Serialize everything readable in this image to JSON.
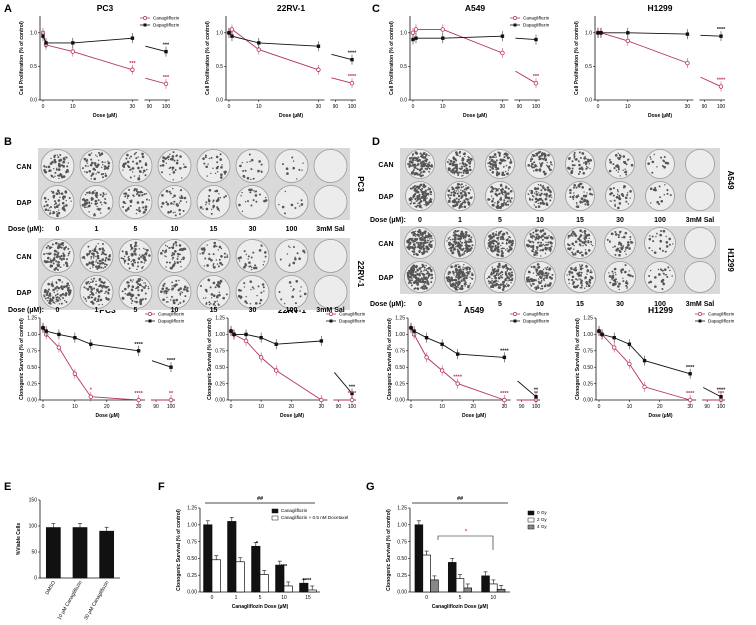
{
  "panel_letters": [
    "A",
    "B",
    "C",
    "D",
    "E",
    "F",
    "G"
  ],
  "legend": {
    "can": "Canagliflozin",
    "dap": "Dapagliflozin",
    "can_doc": "Canagliflozin + 0.5 nM Docetaxel",
    "gy0": "0 Gy",
    "gy2": "2 Gy",
    "gy4": "4 Gy"
  },
  "chart_data": [
    {
      "type": "line",
      "title": "PC3",
      "xlabel": "Dose (µM)",
      "ylabel": "Cell Proliferation (% of control)",
      "x": [
        0,
        1,
        10,
        30,
        100
      ],
      "ylim": [
        0,
        1.25
      ],
      "yticks": [
        "0.0",
        "0.5",
        "1.0"
      ],
      "xticks": [
        "0",
        "10",
        "30",
        "90",
        "100"
      ],
      "series": [
        {
          "name": "Canagliflozin",
          "values": [
            1.0,
            0.82,
            0.72,
            0.45,
            0.24
          ]
        },
        {
          "name": "Dapagliflozin",
          "values": [
            0.95,
            0.85,
            0.85,
            0.92,
            0.72
          ]
        }
      ],
      "annotations": [
        "***",
        "***",
        "***"
      ]
    },
    {
      "type": "line",
      "title": "22RV-1",
      "xlabel": "Dose (µM)",
      "ylabel": "Cell Proliferation (% of control)",
      "x": [
        0,
        1,
        10,
        30,
        100
      ],
      "ylim": [
        0,
        1.25
      ],
      "yticks": [
        "0.0",
        "0.5",
        "1.0"
      ],
      "xticks": [
        "0",
        "10",
        "30",
        "90",
        "100"
      ],
      "series": [
        {
          "name": "Canagliflozin",
          "values": [
            1.0,
            1.05,
            0.75,
            0.45,
            0.25
          ]
        },
        {
          "name": "Dapagliflozin",
          "values": [
            1.0,
            0.95,
            0.85,
            0.8,
            0.6
          ]
        }
      ],
      "annotations": [
        "****",
        "****"
      ]
    },
    {
      "type": "line",
      "title": "A549",
      "xlabel": "Dose (µM)",
      "ylabel": "Cell Proliferation (% of control)",
      "x": [
        0,
        1,
        10,
        30,
        100
      ],
      "ylim": [
        0,
        1.25
      ],
      "yticks": [
        "0.0",
        "0.5",
        "1.0"
      ],
      "xticks": [
        "0",
        "10",
        "30",
        "90",
        "100"
      ],
      "series": [
        {
          "name": "Canagliflozin",
          "values": [
            1.0,
            1.05,
            1.05,
            0.7,
            0.25
          ]
        },
        {
          "name": "Dapagliflozin",
          "values": [
            0.9,
            0.92,
            0.92,
            0.95,
            0.9
          ]
        }
      ],
      "annotations": [
        "***"
      ]
    },
    {
      "type": "line",
      "title": "H1299",
      "xlabel": "Dose (µM)",
      "ylabel": "Cell Proliferation (% of control)",
      "x": [
        0,
        1,
        10,
        30,
        100
      ],
      "ylim": [
        0,
        1.25
      ],
      "yticks": [
        "0.0",
        "0.5",
        "1.0"
      ],
      "xticks": [
        "0",
        "10",
        "30",
        "90",
        "100"
      ],
      "series": [
        {
          "name": "Canagliflozin",
          "values": [
            1.0,
            1.0,
            0.88,
            0.55,
            0.2
          ]
        },
        {
          "name": "Dapagliflozin",
          "values": [
            1.0,
            1.0,
            1.0,
            0.98,
            0.95
          ]
        }
      ],
      "annotations": [
        "****",
        "****"
      ]
    },
    {
      "type": "line",
      "title": "PC3",
      "xlabel": "Dose (µM)",
      "ylabel": "Clonogenic Survival (% of control)",
      "x": [
        0,
        1,
        5,
        10,
        15,
        30,
        100
      ],
      "ylim": [
        0,
        1.25
      ],
      "yticks": [
        "0.00",
        "0.25",
        "0.50",
        "0.75",
        "1.00",
        "1.25"
      ],
      "xticks": [
        "0",
        "10",
        "20",
        "30",
        "90",
        "100"
      ],
      "series": [
        {
          "name": "Canagliflozin",
          "values": [
            1.1,
            1.0,
            0.8,
            0.4,
            0.05,
            0.0,
            0.0
          ]
        },
        {
          "name": "Dapagliflozin",
          "values": [
            1.1,
            1.05,
            1.0,
            0.95,
            0.85,
            0.75,
            0.5
          ]
        }
      ],
      "annotations": [
        "**",
        "****",
        "****",
        "****",
        "*"
      ]
    },
    {
      "type": "line",
      "title": "22RV-1",
      "xlabel": "Dose (µM)",
      "ylabel": "Clonogenic Survival (% of control)",
      "x": [
        0,
        1,
        5,
        10,
        15,
        30,
        100
      ],
      "ylim": [
        0,
        1.25
      ],
      "yticks": [
        "0.00",
        "0.25",
        "0.50",
        "0.75",
        "1.00",
        "1.25"
      ],
      "xticks": [
        "0",
        "10",
        "20",
        "30",
        "90",
        "100"
      ],
      "series": [
        {
          "name": "Canagliflozin",
          "values": [
            1.05,
            1.0,
            0.9,
            0.65,
            0.45,
            0.0,
            0.0
          ]
        },
        {
          "name": "Dapagliflozin",
          "values": [
            1.05,
            1.0,
            1.0,
            0.95,
            0.85,
            0.9,
            0.1
          ]
        }
      ],
      "annotations": [
        "****",
        "***"
      ]
    },
    {
      "type": "line",
      "title": "A549",
      "xlabel": "Dose (µM)",
      "ylabel": "Clonogenic Survival (% of control)",
      "x": [
        0,
        1,
        5,
        10,
        15,
        30,
        100
      ],
      "ylim": [
        0,
        1.25
      ],
      "yticks": [
        "0.00",
        "0.25",
        "0.50",
        "0.75",
        "1.00",
        "1.25"
      ],
      "xticks": [
        "0",
        "10",
        "20",
        "30",
        "90",
        "100"
      ],
      "series": [
        {
          "name": "Canagliflozin",
          "values": [
            1.1,
            1.0,
            0.65,
            0.45,
            0.25,
            0.0,
            0.0
          ]
        },
        {
          "name": "Dapagliflozin",
          "values": [
            1.1,
            1.05,
            0.95,
            0.85,
            0.7,
            0.65,
            0.05
          ]
        }
      ],
      "annotations": [
        "**",
        "**",
        "****",
        "****",
        "****"
      ]
    },
    {
      "type": "line",
      "title": "H1299",
      "xlabel": "Dose (µM)",
      "ylabel": "Clonogenic Survival (% of control)",
      "x": [
        0,
        1,
        5,
        10,
        15,
        30,
        100
      ],
      "ylim": [
        0,
        1.25
      ],
      "yticks": [
        "0.00",
        "0.25",
        "0.50",
        "0.75",
        "1.00",
        "1.25"
      ],
      "xticks": [
        "0",
        "10",
        "20",
        "30",
        "90",
        "100"
      ],
      "series": [
        {
          "name": "Canagliflozin",
          "values": [
            1.05,
            1.0,
            0.8,
            0.55,
            0.2,
            0.0,
            0.0
          ]
        },
        {
          "name": "Dapagliflozin",
          "values": [
            1.05,
            1.0,
            0.95,
            0.85,
            0.6,
            0.4,
            0.05
          ]
        }
      ],
      "annotations": [
        "***",
        "****",
        "****",
        "****"
      ]
    },
    {
      "type": "bar",
      "ylabel": "%Viable Cells",
      "categories": [
        "DMSO",
        "10 µM Canagliflozin",
        "30 µM Canagliflozin"
      ],
      "values": [
        97,
        97,
        90
      ],
      "ylim": [
        0,
        150
      ],
      "yticks": [
        "0",
        "50",
        "100",
        "150"
      ]
    },
    {
      "type": "bar",
      "xlabel": "Canagliflozin Dose (µM)",
      "ylabel": "Clonogenic Survival (% of control)",
      "categories": [
        "0",
        "1",
        "5",
        "10",
        "15"
      ],
      "ylim": [
        0,
        1.25
      ],
      "yticks": [
        "0.00",
        "0.25",
        "0.50",
        "0.75",
        "1.00",
        "1.25"
      ],
      "series": [
        {
          "name": "Canagliflozin",
          "values": [
            1.0,
            1.05,
            0.68,
            0.4,
            0.13
          ]
        },
        {
          "name": "Canagliflozin + 0.5 nM Docetaxel",
          "values": [
            0.48,
            0.45,
            0.26,
            0.09,
            0.03
          ]
        }
      ],
      "annotations": [
        "##",
        "*",
        "***",
        "****"
      ]
    },
    {
      "type": "bar",
      "xlabel": "Canagliflozin Dose (µM)",
      "ylabel": "Clonogenic Survival (% of control)",
      "categories": [
        "0",
        "5",
        "10"
      ],
      "ylim": [
        0,
        1.25
      ],
      "yticks": [
        "0.00",
        "0.25",
        "0.50",
        "0.75",
        "1.00",
        "1.25"
      ],
      "series": [
        {
          "name": "0 Gy",
          "values": [
            1.0,
            0.44,
            0.24
          ]
        },
        {
          "name": "2 Gy",
          "values": [
            0.55,
            0.2,
            0.12
          ]
        },
        {
          "name": "4 Gy",
          "values": [
            0.18,
            0.06,
            0.04
          ]
        }
      ],
      "annotations": [
        "##",
        "*"
      ]
    }
  ],
  "dishes": {
    "dose_label": "Dose (µM):",
    "doses": [
      "0",
      "1",
      "5",
      "10",
      "15",
      "30",
      "100",
      "3mM Sal"
    ],
    "rows": [
      "CAN",
      "DAP"
    ],
    "B_cells": [
      "PC3",
      "22RV-1"
    ],
    "D_cells": [
      "A549",
      "H1299"
    ]
  }
}
